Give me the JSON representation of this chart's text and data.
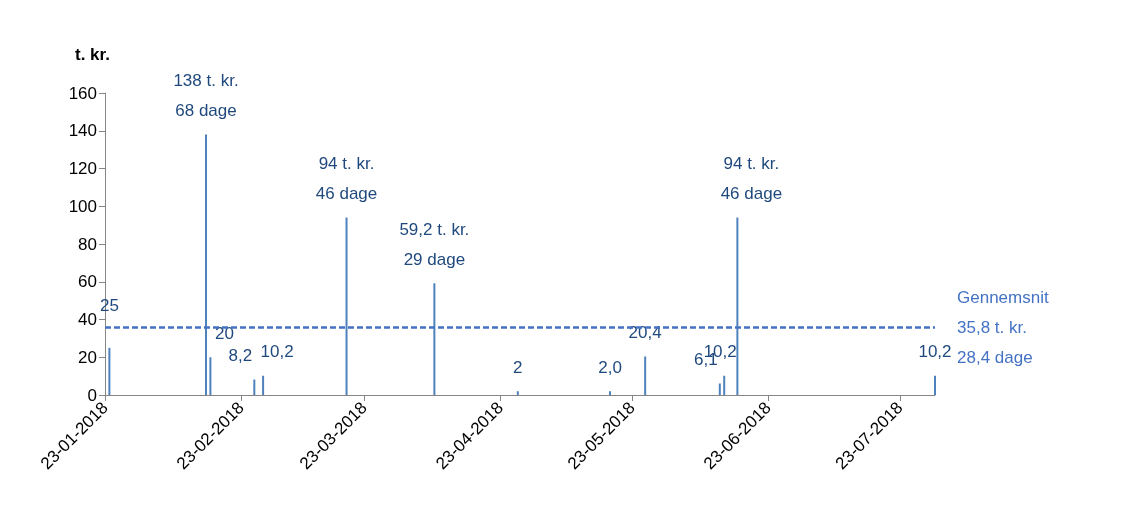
{
  "chart_data": {
    "type": "bar",
    "ylabel": "t. kr.",
    "x": [
      "2018-01-24",
      "2018-02-15",
      "2018-02-16",
      "2018-02-26",
      "2018-02-28",
      "2018-03-19",
      "2018-04-08",
      "2018-04-27",
      "2018-05-18",
      "2018-05-26",
      "2018-06-12",
      "2018-06-13",
      "2018-06-16",
      "2018-07-31"
    ],
    "values": [
      25,
      138,
      20,
      8.2,
      10.2,
      94,
      59.2,
      2,
      2.0,
      20.4,
      6.1,
      10.2,
      94,
      10.2
    ],
    "value_labels": [
      "25",
      "138 t. kr.\n68 dage",
      "20",
      "8,2",
      "10,2",
      "94 t. kr.\n46 dage",
      "59,2 t. kr.\n29 dage",
      "2",
      "2,0",
      "20,4",
      "6,1",
      "10,2",
      "94 t. kr.\n46 dage",
      "10,2"
    ],
    "color": "#4f81bd",
    "xlim": [
      "2018-01-23",
      "2018-07-31"
    ],
    "xticks": [
      {
        "value": "2018-01-23",
        "label": "23-01-2018"
      },
      {
        "value": "2018-02-23",
        "label": "23-02-2018"
      },
      {
        "value": "2018-03-23",
        "label": "23-03-2018"
      },
      {
        "value": "2018-04-23",
        "label": "23-04-2018"
      },
      {
        "value": "2018-05-23",
        "label": "23-05-2018"
      },
      {
        "value": "2018-06-23",
        "label": "23-06-2018"
      },
      {
        "value": "2018-07-23",
        "label": "23-07-2018"
      }
    ],
    "ylim": [
      0,
      160
    ],
    "yticks": [
      0,
      20,
      40,
      60,
      80,
      100,
      120,
      140,
      160
    ],
    "grid": false,
    "ref_lines": [
      {
        "axis": "y",
        "value": 35.8,
        "label": "Gennemsnit\n35,8 t. kr.\n28,4 dage",
        "color": "#4472c4",
        "line_style": "dashed"
      }
    ]
  }
}
